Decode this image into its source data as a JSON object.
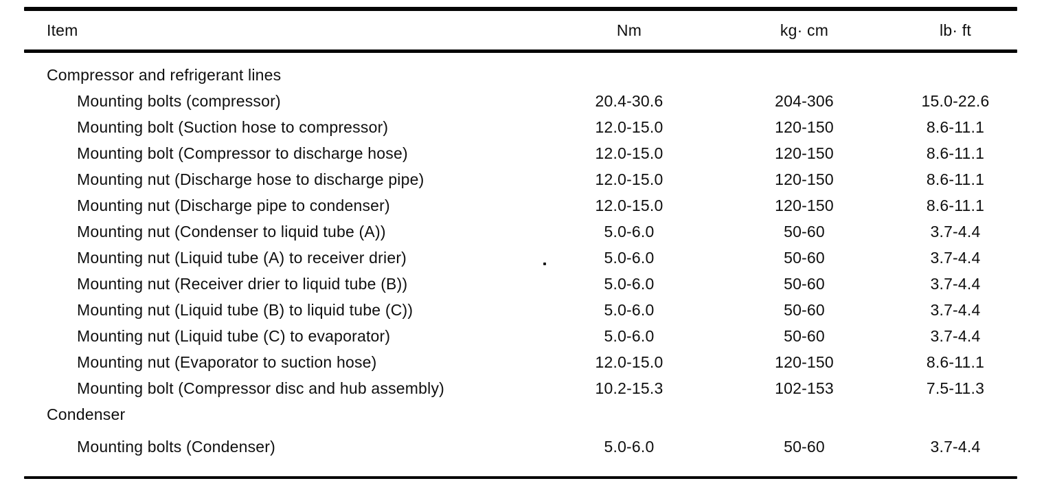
{
  "page": {
    "background": "#ffffff",
    "ink": "#0f0f0f",
    "rule_color": "#050505"
  },
  "table": {
    "headers": {
      "item": "Item",
      "nm": "Nm",
      "kg_cm": "kg· cm",
      "lb_ft": "lb· ft"
    },
    "sections": [
      {
        "title": "Compressor and refrigerant lines",
        "rows": [
          {
            "item": "Mounting bolts (compressor)",
            "nm": "20.4-30.6",
            "kg_cm": "204-306",
            "lb_ft": "15.0-22.6"
          },
          {
            "item": "Mounting bolt (Suction hose to compressor)",
            "nm": "12.0-15.0",
            "kg_cm": "120-150",
            "lb_ft": "8.6-11.1"
          },
          {
            "item": "Mounting bolt (Compressor to discharge hose)",
            "nm": "12.0-15.0",
            "kg_cm": "120-150",
            "lb_ft": "8.6-11.1"
          },
          {
            "item": "Mounting nut (Discharge hose to discharge pipe)",
            "nm": "12.0-15.0",
            "kg_cm": "120-150",
            "lb_ft": "8.6-11.1"
          },
          {
            "item": "Mounting nut (Discharge pipe to condenser)",
            "nm": "12.0-15.0",
            "kg_cm": "120-150",
            "lb_ft": "8.6-11.1"
          },
          {
            "item": "Mounting nut (Condenser to liquid tube (A))",
            "nm": "5.0-6.0",
            "kg_cm": "50-60",
            "lb_ft": "3.7-4.4"
          },
          {
            "item": "Mounting nut (Liquid tube (A) to receiver drier)",
            "nm": "5.0-6.0",
            "kg_cm": "50-60",
            "lb_ft": "3.7-4.4"
          },
          {
            "item": "Mounting nut (Receiver drier to liquid tube (B))",
            "nm": "5.0-6.0",
            "kg_cm": "50-60",
            "lb_ft": "3.7-4.4"
          },
          {
            "item": "Mounting nut (Liquid tube (B) to liquid tube (C))",
            "nm": "5.0-6.0",
            "kg_cm": "50-60",
            "lb_ft": "3.7-4.4"
          },
          {
            "item": "Mounting nut (Liquid tube (C) to evaporator)",
            "nm": "5.0-6.0",
            "kg_cm": "50-60",
            "lb_ft": "3.7-4.4"
          },
          {
            "item": "Mounting nut (Evaporator to suction hose)",
            "nm": "12.0-15.0",
            "kg_cm": "120-150",
            "lb_ft": "8.6-11.1"
          },
          {
            "item": "Mounting bolt (Compressor disc and hub assembly)",
            "nm": "10.2-15.3",
            "kg_cm": "102-153",
            "lb_ft": "7.5-11.3"
          }
        ]
      },
      {
        "title": "Condenser",
        "rows": [
          {
            "item": "Mounting bolts (Condenser)",
            "nm": "5.0-6.0",
            "kg_cm": "50-60",
            "lb_ft": "3.7-4.4"
          }
        ]
      }
    ]
  }
}
